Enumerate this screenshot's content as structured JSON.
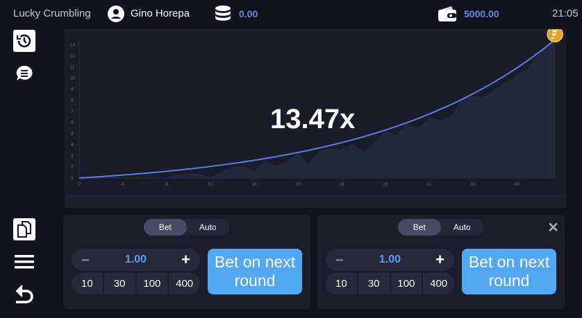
{
  "header": {
    "app_title": "Lucky Crumbling",
    "user_name": "Gino Horepa",
    "coins_balance": "0.00",
    "wallet_balance": "5000.00",
    "time": "21:05"
  },
  "sidebar": {
    "items": [
      {
        "icon": "history-icon"
      },
      {
        "icon": "chat-icon"
      },
      {
        "icon": "copy-icon"
      },
      {
        "icon": "menu-icon"
      },
      {
        "icon": "back-icon"
      }
    ]
  },
  "colors": {
    "accent": "#52a7f3",
    "balance": "#5b8ee6",
    "curve": "#5b7fe0",
    "background": "#12131d"
  },
  "multiplier": "13.47x",
  "chart_data": {
    "type": "line",
    "x_ticks": [
      0,
      4,
      8,
      12,
      16,
      20,
      24,
      28,
      32,
      36,
      40
    ],
    "y_ticks": [
      1,
      2,
      3,
      4,
      5,
      6,
      7,
      8,
      9,
      10,
      11,
      12,
      13
    ],
    "xlim": [
      0,
      44
    ],
    "ylim": [
      1,
      13
    ],
    "curve": {
      "start": 1,
      "end_x": 43.5,
      "end_y": 13.47
    },
    "history_area": [
      1,
      1,
      1,
      1,
      1,
      1,
      1,
      1,
      1.05,
      1.3,
      1.4,
      1.4,
      1.05,
      1.6,
      2,
      2.1,
      1.6,
      2.6,
      2.05,
      2.5,
      3.2,
      2.3,
      3.5,
      3.7,
      3.6,
      4.1,
      3.4,
      4.2,
      5.3,
      4.9,
      5.9,
      5.5,
      6.5,
      6.2,
      6.6,
      8.1,
      8.4,
      8.3,
      9,
      9.6,
      10.3,
      10.9,
      12.2,
      13.2,
      13.47
    ]
  },
  "panels": [
    {
      "tabs": [
        "Bet",
        "Auto"
      ],
      "active_tab": "Bet",
      "amount": "1.00",
      "minus": "−",
      "plus": "+",
      "chips": [
        "10",
        "30",
        "100",
        "400"
      ],
      "bet_button": "Bet on next round"
    },
    {
      "tabs": [
        "Bet",
        "Auto"
      ],
      "active_tab": "Bet",
      "amount": "1.00",
      "minus": "−",
      "plus": "+",
      "chips": [
        "10",
        "30",
        "100",
        "400"
      ],
      "bet_button": "Bet on next round",
      "close": "✕"
    }
  ]
}
